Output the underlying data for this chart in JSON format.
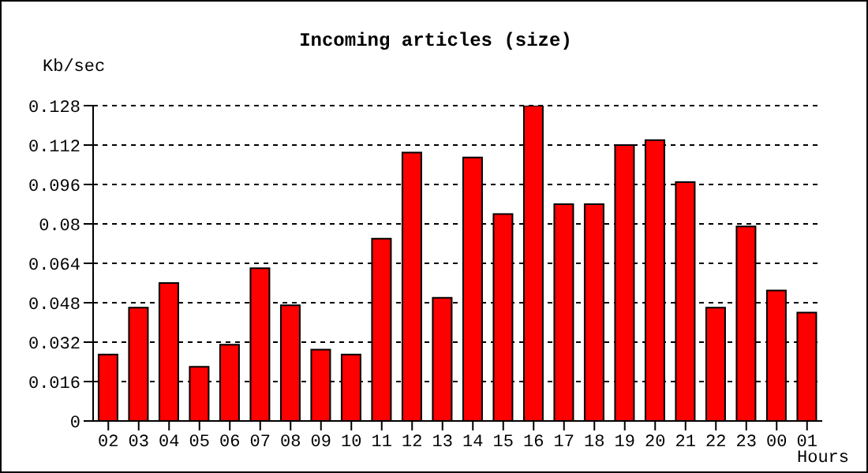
{
  "chart_data": {
    "type": "bar",
    "title": "Incoming articles (size)",
    "ylabel": "Kb/sec",
    "xlabel": "Hours",
    "categories": [
      "02",
      "03",
      "04",
      "05",
      "06",
      "07",
      "08",
      "09",
      "10",
      "11",
      "12",
      "13",
      "14",
      "15",
      "16",
      "17",
      "18",
      "19",
      "20",
      "21",
      "22",
      "23",
      "00",
      "01"
    ],
    "values": [
      0.027,
      0.046,
      0.056,
      0.022,
      0.031,
      0.062,
      0.047,
      0.029,
      0.027,
      0.074,
      0.109,
      0.05,
      0.107,
      0.084,
      0.128,
      0.088,
      0.088,
      0.112,
      0.114,
      0.097,
      0.046,
      0.079,
      0.053,
      0.044
    ],
    "color": "#ff0000",
    "ylim": [
      0,
      0.128
    ],
    "yticks": [
      0,
      0.016,
      0.032,
      0.048,
      0.064,
      0.08,
      0.096,
      0.112,
      0.128
    ],
    "grid": "y"
  }
}
